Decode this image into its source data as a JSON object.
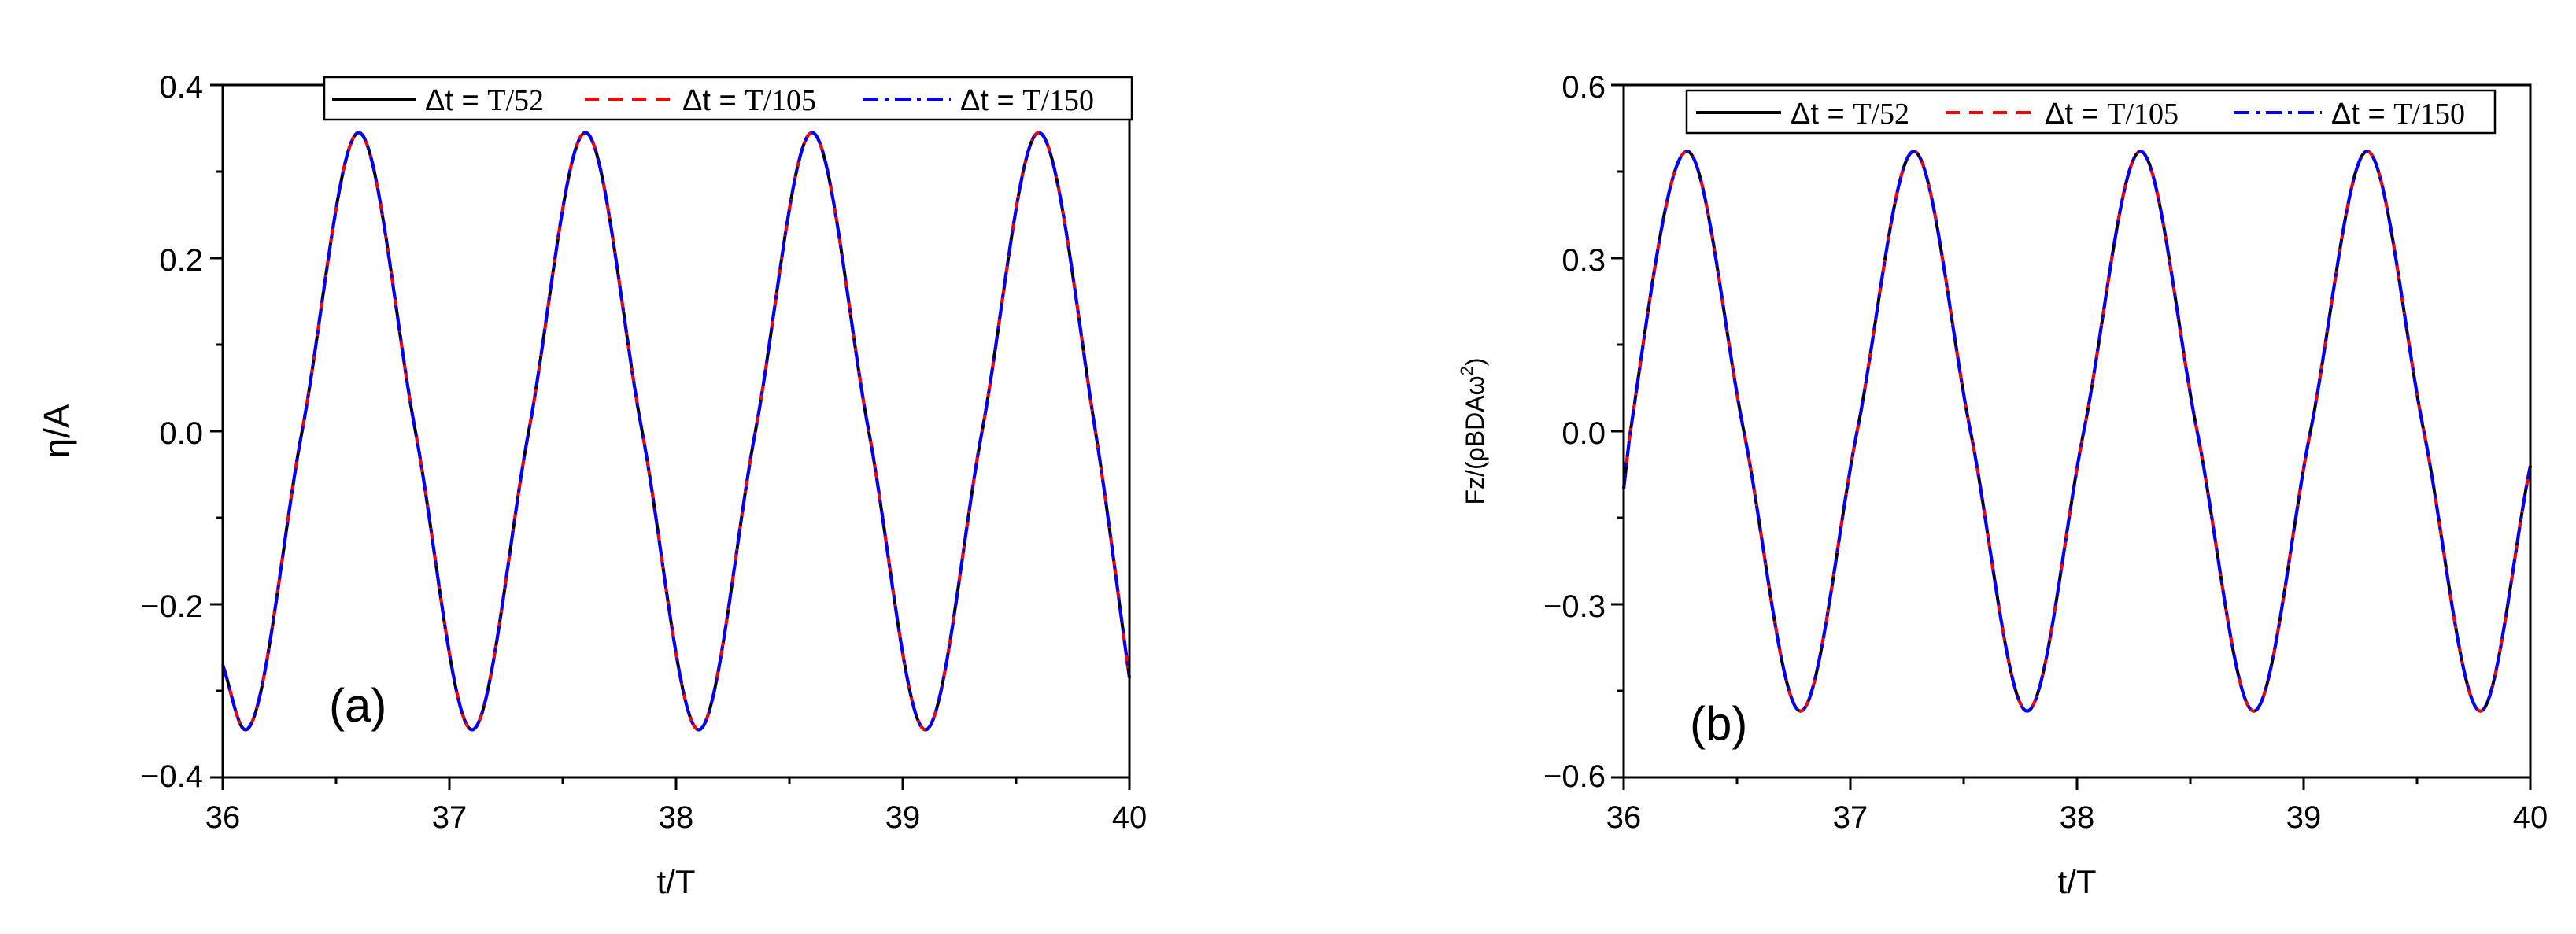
{
  "chart_data": [
    {
      "type": "line",
      "panel_label": "(a)",
      "xlabel": "t/T",
      "ylabel": "η/A",
      "xlim": [
        36,
        40
      ],
      "ylim": [
        -0.4,
        0.4
      ],
      "xticks": [
        36,
        37,
        38,
        39,
        40
      ],
      "xtick_labels": [
        "36",
        "37",
        "38",
        "39",
        "40"
      ],
      "yticks": [
        -0.4,
        -0.2,
        0.0,
        0.2,
        0.4
      ],
      "ytick_labels": [
        "−0.4",
        "−0.2",
        "0.0",
        "0.2",
        "0.4"
      ],
      "grid": false,
      "legend_position": "top-right",
      "series": [
        {
          "name": "Δt = T/52",
          "legend_prefix": "Δt = ",
          "legend_suffix": "T/52",
          "color": "#000000",
          "dash": "solid",
          "x": [
            36.0,
            36.1,
            36.35,
            36.6,
            36.85,
            37.1,
            37.35,
            37.6,
            37.85,
            38.1,
            38.35,
            38.6,
            38.85,
            39.1,
            39.35,
            39.6,
            39.85,
            40.0
          ],
          "y": [
            -0.27,
            -0.345,
            0.0,
            0.345,
            0.0,
            -0.345,
            0.0,
            0.345,
            0.0,
            -0.345,
            0.0,
            0.345,
            0.0,
            -0.345,
            0.0,
            0.345,
            0.0,
            -0.285
          ]
        },
        {
          "name": "Δt = T/105",
          "legend_prefix": "Δt = ",
          "legend_suffix": "T/105",
          "color": "#ff0000",
          "dash": "dash",
          "x": [
            36.0,
            36.1,
            36.35,
            36.6,
            36.85,
            37.1,
            37.35,
            37.6,
            37.85,
            38.1,
            38.35,
            38.6,
            38.85,
            39.1,
            39.35,
            39.6,
            39.85,
            40.0
          ],
          "y": [
            -0.27,
            -0.345,
            0.0,
            0.345,
            0.0,
            -0.345,
            0.0,
            0.345,
            0.0,
            -0.345,
            0.0,
            0.345,
            0.0,
            -0.345,
            0.0,
            0.345,
            0.0,
            -0.285
          ]
        },
        {
          "name": "Δt = T/150",
          "legend_prefix": "Δt = ",
          "legend_suffix": "T/150",
          "color": "#0000ff",
          "dash": "dashdot",
          "x": [
            36.0,
            36.1,
            36.35,
            36.6,
            36.85,
            37.1,
            37.35,
            37.6,
            37.85,
            38.1,
            38.35,
            38.6,
            38.85,
            39.1,
            39.35,
            39.6,
            39.85,
            40.0
          ],
          "y": [
            -0.27,
            -0.345,
            0.0,
            0.345,
            0.0,
            -0.345,
            0.0,
            0.345,
            0.0,
            -0.345,
            0.0,
            0.345,
            0.0,
            -0.345,
            0.0,
            0.345,
            0.0,
            -0.285
          ]
        }
      ]
    },
    {
      "type": "line",
      "panel_label": "(b)",
      "xlabel": "t/T",
      "ylabel_main": "Fz/(ρBDAω",
      "ylabel_sup": "2",
      "ylabel_close": ")",
      "xlim": [
        36,
        40
      ],
      "ylim": [
        -0.6,
        0.6
      ],
      "xticks": [
        36,
        37,
        38,
        39,
        40
      ],
      "xtick_labels": [
        "36",
        "37",
        "38",
        "39",
        "40"
      ],
      "yticks": [
        -0.6,
        -0.3,
        0.0,
        0.3,
        0.6
      ],
      "ytick_labels": [
        "−0.6",
        "−0.3",
        "0.0",
        "0.3",
        "0.6"
      ],
      "grid": false,
      "legend_position": "top-right",
      "series": [
        {
          "name": "Δt = T/52",
          "legend_prefix": "Δt = ",
          "legend_suffix": "T/52",
          "color": "#000000",
          "dash": "solid",
          "x": [
            36.0,
            36.03,
            36.28,
            36.53,
            36.78,
            37.03,
            37.28,
            37.53,
            37.78,
            38.03,
            38.28,
            38.53,
            38.78,
            39.03,
            39.28,
            39.53,
            39.78,
            40.0
          ],
          "y": [
            -0.1,
            0.0,
            0.485,
            0.0,
            -0.485,
            0.0,
            0.485,
            0.0,
            -0.485,
            0.0,
            0.485,
            0.0,
            -0.485,
            0.0,
            0.485,
            0.0,
            -0.485,
            -0.06
          ]
        },
        {
          "name": "Δt = T/105",
          "legend_prefix": "Δt = ",
          "legend_suffix": "T/105",
          "color": "#ff0000",
          "dash": "dash",
          "x": [
            36.0,
            36.03,
            36.28,
            36.53,
            36.78,
            37.03,
            37.28,
            37.53,
            37.78,
            38.03,
            38.28,
            38.53,
            38.78,
            39.03,
            39.28,
            39.53,
            39.78,
            40.0
          ],
          "y": [
            -0.1,
            0.0,
            0.485,
            0.0,
            -0.485,
            0.0,
            0.485,
            0.0,
            -0.485,
            0.0,
            0.485,
            0.0,
            -0.485,
            0.0,
            0.485,
            0.0,
            -0.485,
            -0.06
          ]
        },
        {
          "name": "Δt = T/150",
          "legend_prefix": "Δt = ",
          "legend_suffix": "T/150",
          "color": "#0000ff",
          "dash": "dashdot",
          "x": [
            36.0,
            36.03,
            36.28,
            36.53,
            36.78,
            37.03,
            37.28,
            37.53,
            37.78,
            38.03,
            38.28,
            38.53,
            38.78,
            39.03,
            39.28,
            39.53,
            39.78,
            40.0
          ],
          "y": [
            -0.1,
            0.0,
            0.485,
            0.0,
            -0.485,
            0.0,
            0.485,
            0.0,
            -0.485,
            0.0,
            0.485,
            0.0,
            -0.485,
            0.0,
            0.485,
            0.0,
            -0.485,
            -0.06
          ]
        }
      ]
    }
  ]
}
